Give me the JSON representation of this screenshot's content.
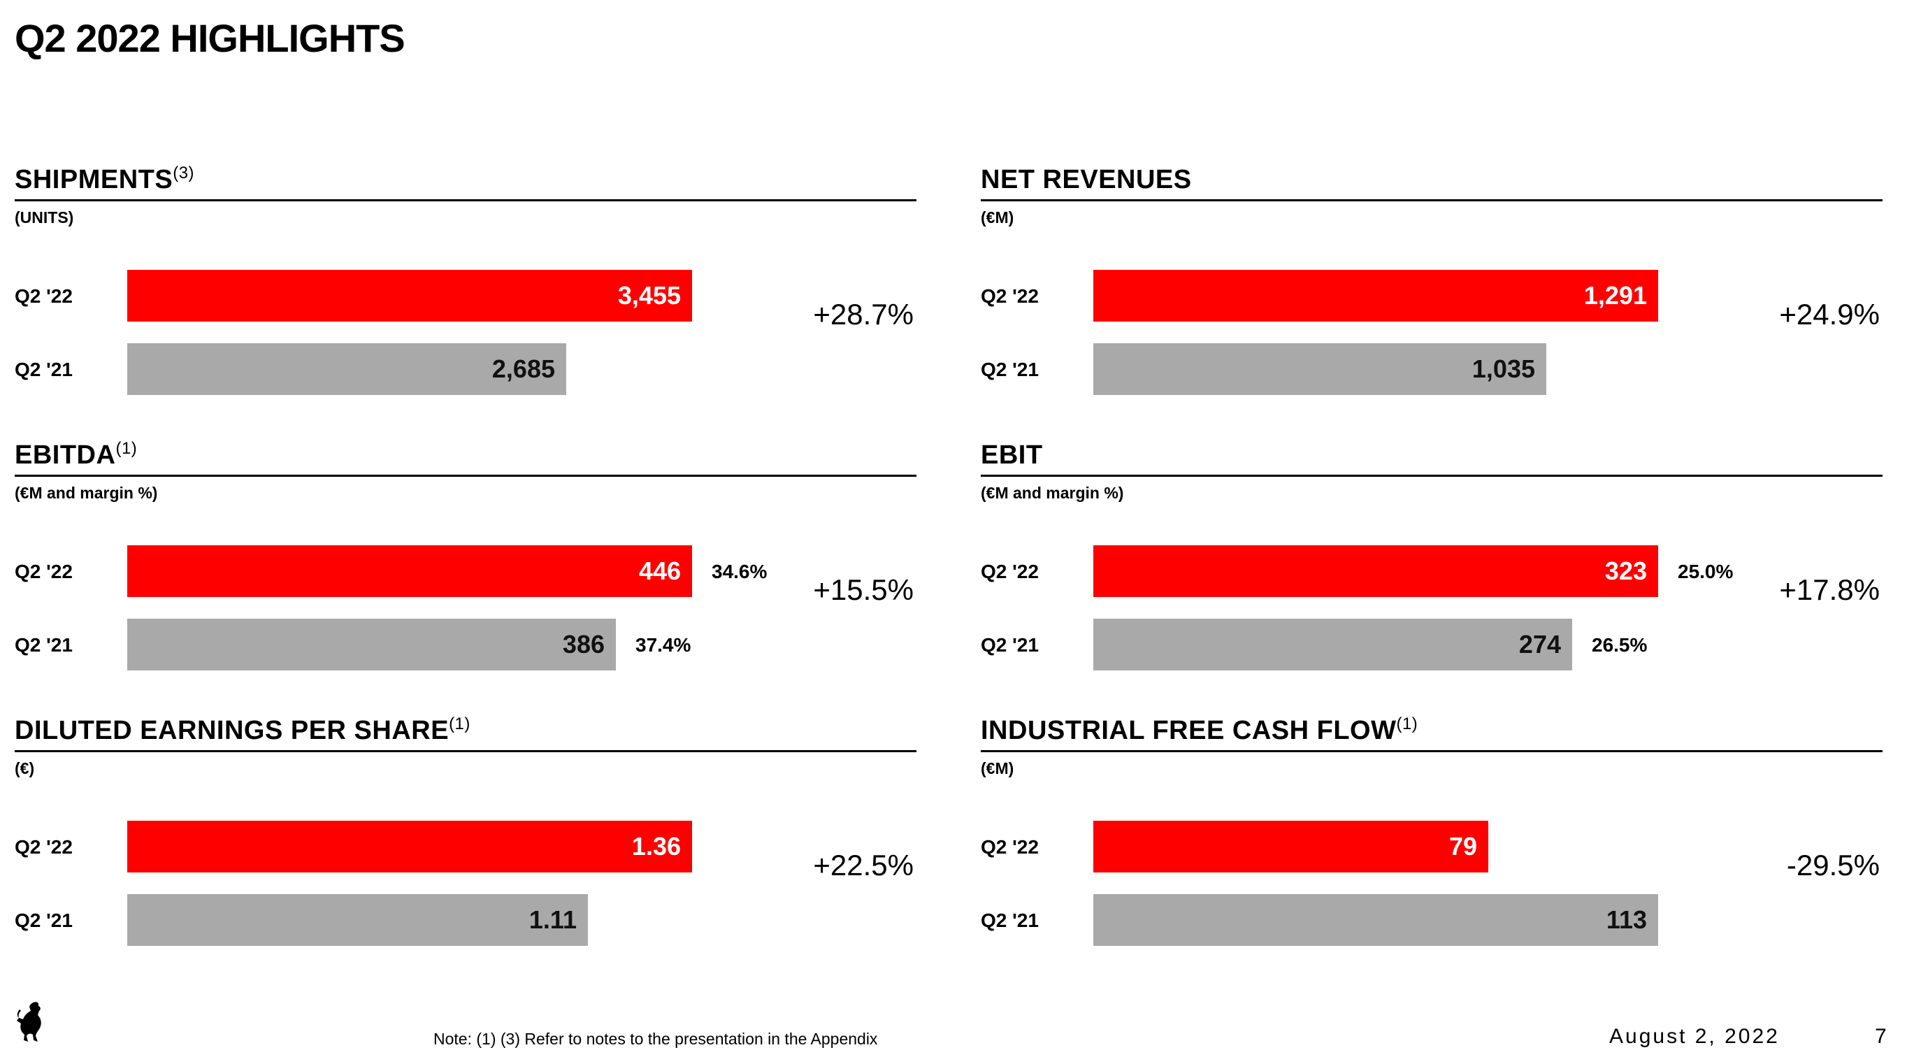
{
  "title": "Q2 2022 HIGHLIGHTS",
  "colors": {
    "current": "#ff0000",
    "prior": "#a9a9a9",
    "current_text": "#ffffff",
    "prior_text": "#111111"
  },
  "chart_data": [
    {
      "type": "bar",
      "orientation": "horizontal",
      "title": "SHIPMENTS",
      "title_note": "(3)",
      "unit": "(UNITS)",
      "categories": [
        "Q2 '22",
        "Q2 '21"
      ],
      "values": [
        3455,
        2685
      ],
      "value_labels": [
        "3,455",
        "2,685"
      ],
      "change": "+28.7%"
    },
    {
      "type": "bar",
      "orientation": "horizontal",
      "title": "NET REVENUES",
      "title_note": "",
      "unit": "(€M)",
      "categories": [
        "Q2 '22",
        "Q2 '21"
      ],
      "values": [
        1291,
        1035
      ],
      "value_labels": [
        "1,291",
        "1,035"
      ],
      "change": "+24.9%"
    },
    {
      "type": "bar",
      "orientation": "horizontal",
      "title": "EBITDA",
      "title_note": "(1)",
      "unit": "(€M and margin %)",
      "categories": [
        "Q2 '22",
        "Q2 '21"
      ],
      "values": [
        446,
        386
      ],
      "value_labels": [
        "446",
        "386"
      ],
      "margins": [
        "34.6%",
        "37.4%"
      ],
      "change": "+15.5%"
    },
    {
      "type": "bar",
      "orientation": "horizontal",
      "title": "EBIT",
      "title_note": "",
      "unit": "(€M and margin %)",
      "categories": [
        "Q2 '22",
        "Q2 '21"
      ],
      "values": [
        323,
        274
      ],
      "value_labels": [
        "323",
        "274"
      ],
      "margins": [
        "25.0%",
        "26.5%"
      ],
      "change": "+17.8%"
    },
    {
      "type": "bar",
      "orientation": "horizontal",
      "title": "DILUTED EARNINGS PER SHARE",
      "title_note": "(1)",
      "unit": "(€)",
      "categories": [
        "Q2 '22",
        "Q2 '21"
      ],
      "values": [
        1.36,
        1.11
      ],
      "value_labels": [
        "1.36",
        "1.11"
      ],
      "change": "+22.5%"
    },
    {
      "type": "bar",
      "orientation": "horizontal",
      "title": "INDUSTRIAL FREE CASH FLOW",
      "title_note": "(1)",
      "unit": "(€M)",
      "categories": [
        "Q2 '22",
        "Q2 '21"
      ],
      "values": [
        79,
        113
      ],
      "value_labels": [
        "79",
        "113"
      ],
      "change": "-29.5%"
    }
  ],
  "footer": {
    "note": "Note: (1) (3) Refer to notes to the presentation in the Appendix",
    "date": "August 2, 2022",
    "page": "7",
    "logo": "prancing-horse-logo"
  }
}
